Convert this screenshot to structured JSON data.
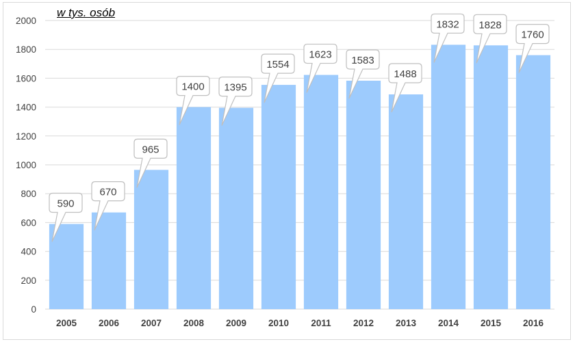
{
  "chart_data": {
    "type": "bar",
    "title": "",
    "unit_label": "w tys. osób",
    "xlabel": "",
    "ylabel": "",
    "categories": [
      "2005",
      "2006",
      "2007",
      "2008",
      "2009",
      "2010",
      "2011",
      "2012",
      "2013",
      "2014",
      "2015",
      "2016"
    ],
    "values": [
      590,
      670,
      965,
      1400,
      1395,
      1554,
      1623,
      1583,
      1488,
      1832,
      1828,
      1760
    ],
    "ylim": [
      0,
      2000
    ],
    "yticks": [
      0,
      200,
      400,
      600,
      800,
      1000,
      1200,
      1400,
      1600,
      1800,
      2000
    ],
    "grid": true,
    "legend": "none",
    "colors": {
      "bar": "#9dcbfd",
      "gridline": "#d9d9d9",
      "text": "#404040",
      "callout_border": "#bfbfbf"
    }
  }
}
